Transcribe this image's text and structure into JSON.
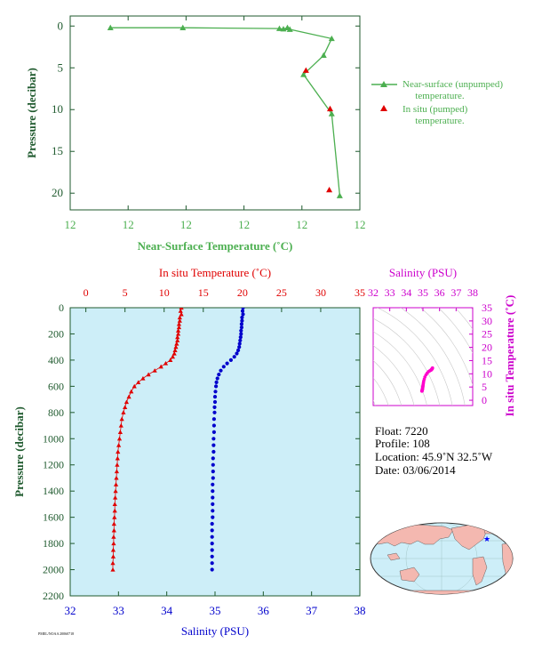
{
  "colors": {
    "axis_green": "#1f5a2e",
    "near_surface_green": "#4caf50",
    "in_situ_red": "#e00000",
    "salinity_blue": "#0000cc",
    "salinity_magenta": "#cc00cc",
    "panel_fill": "#cdeef8",
    "land_pink": "#f4b8b0",
    "ocean": "#cdeef8"
  },
  "chart_data": [
    {
      "type": "line",
      "xlabel": "Near-Surface Temperature (˚C)",
      "ylabel": "Pressure (decibar)",
      "x_tick_labels": [
        "12",
        "12",
        "12",
        "12",
        "12",
        "12"
      ],
      "y_ticks": [
        0,
        5,
        10,
        15,
        20
      ],
      "y_reversed": true,
      "legend_placement": "right",
      "series": [
        {
          "name": "Near-surface (unpumped) temperature.",
          "line_name": "Near-surface (unpumped)",
          "line2": "temperature.",
          "marker": "triangle",
          "color": "#4caf50",
          "points": [
            {
              "t": 11.67,
              "p": 0.2
            },
            {
              "t": 11.76,
              "p": 0.2
            },
            {
              "t": 11.88,
              "p": 0.3
            },
            {
              "t": 11.885,
              "p": 0.35
            },
            {
              "t": 11.89,
              "p": 0.2
            },
            {
              "t": 11.893,
              "p": 0.4
            },
            {
              "t": 11.945,
              "p": 1.5
            },
            {
              "t": 11.935,
              "p": 3.5
            },
            {
              "t": 11.91,
              "p": 5.8
            },
            {
              "t": 11.945,
              "p": 10.5
            },
            {
              "t": 11.955,
              "p": 20.3
            }
          ]
        },
        {
          "name": "In situ (pumped) temperature.",
          "line_name": "In situ (pumped)",
          "line2": "temperature.",
          "marker": "triangle",
          "color": "#e00000",
          "points": [
            {
              "t": 11.913,
              "p": 5.3
            },
            {
              "t": 11.943,
              "p": 9.9
            },
            {
              "t": 11.942,
              "p": 19.6
            }
          ]
        }
      ]
    },
    {
      "type": "scatter",
      "top_axis_label": "In situ Temperature (˚C)",
      "bottom_axis_label": "Salinity (PSU)",
      "ylabel": "Pressure (decibar)",
      "temperature_ticks": [
        0,
        5,
        10,
        15,
        20,
        25,
        30,
        35
      ],
      "salinity_ticks": [
        32,
        33,
        34,
        35,
        36,
        37,
        38
      ],
      "pressure_ticks": [
        0,
        200,
        400,
        600,
        800,
        1000,
        1200,
        1400,
        1600,
        1800,
        2000,
        2200
      ],
      "temperature_range": [
        -2,
        35
      ],
      "salinity_range": [
        32,
        38
      ],
      "pressure_range": [
        0,
        2200
      ],
      "series": [
        {
          "name": "In situ Temperature",
          "marker": "triangle",
          "color": "#e00000",
          "points": [
            {
              "p": 0,
              "v": 12.2
            },
            {
              "p": 25,
              "v": 12.1
            },
            {
              "p": 50,
              "v": 12.2
            },
            {
              "p": 75,
              "v": 12.0
            },
            {
              "p": 100,
              "v": 12.0
            },
            {
              "p": 125,
              "v": 11.9
            },
            {
              "p": 150,
              "v": 11.9
            },
            {
              "p": 175,
              "v": 11.8
            },
            {
              "p": 200,
              "v": 11.8
            },
            {
              "p": 225,
              "v": 11.7
            },
            {
              "p": 250,
              "v": 11.7
            },
            {
              "p": 275,
              "v": 11.6
            },
            {
              "p": 300,
              "v": 11.5
            },
            {
              "p": 325,
              "v": 11.4
            },
            {
              "p": 350,
              "v": 11.3
            },
            {
              "p": 375,
              "v": 11.1
            },
            {
              "p": 400,
              "v": 10.8
            },
            {
              "p": 425,
              "v": 10.2
            },
            {
              "p": 450,
              "v": 9.6
            },
            {
              "p": 480,
              "v": 8.8
            },
            {
              "p": 510,
              "v": 8.0
            },
            {
              "p": 540,
              "v": 7.3
            },
            {
              "p": 570,
              "v": 6.7
            },
            {
              "p": 600,
              "v": 6.2
            },
            {
              "p": 640,
              "v": 5.8
            },
            {
              "p": 680,
              "v": 5.5
            },
            {
              "p": 720,
              "v": 5.2
            },
            {
              "p": 760,
              "v": 5.0
            },
            {
              "p": 800,
              "v": 4.8
            },
            {
              "p": 850,
              "v": 4.6
            },
            {
              "p": 900,
              "v": 4.5
            },
            {
              "p": 950,
              "v": 4.4
            },
            {
              "p": 1000,
              "v": 4.3
            },
            {
              "p": 1050,
              "v": 4.2
            },
            {
              "p": 1100,
              "v": 4.1
            },
            {
              "p": 1150,
              "v": 4.05
            },
            {
              "p": 1200,
              "v": 4.0
            },
            {
              "p": 1250,
              "v": 3.95
            },
            {
              "p": 1300,
              "v": 3.9
            },
            {
              "p": 1350,
              "v": 3.85
            },
            {
              "p": 1400,
              "v": 3.8
            },
            {
              "p": 1450,
              "v": 3.75
            },
            {
              "p": 1500,
              "v": 3.7
            },
            {
              "p": 1550,
              "v": 3.7
            },
            {
              "p": 1600,
              "v": 3.65
            },
            {
              "p": 1650,
              "v": 3.6
            },
            {
              "p": 1700,
              "v": 3.6
            },
            {
              "p": 1750,
              "v": 3.55
            },
            {
              "p": 1800,
              "v": 3.55
            },
            {
              "p": 1850,
              "v": 3.5
            },
            {
              "p": 1900,
              "v": 3.5
            },
            {
              "p": 1950,
              "v": 3.45
            },
            {
              "p": 2000,
              "v": 3.45
            }
          ]
        },
        {
          "name": "Salinity",
          "marker": "circle",
          "color": "#0000cc",
          "points": [
            {
              "p": 0,
              "v": 35.58
            },
            {
              "p": 25,
              "v": 35.57
            },
            {
              "p": 50,
              "v": 35.58
            },
            {
              "p": 75,
              "v": 35.56
            },
            {
              "p": 100,
              "v": 35.56
            },
            {
              "p": 125,
              "v": 35.55
            },
            {
              "p": 150,
              "v": 35.55
            },
            {
              "p": 175,
              "v": 35.54
            },
            {
              "p": 200,
              "v": 35.54
            },
            {
              "p": 225,
              "v": 35.53
            },
            {
              "p": 250,
              "v": 35.52
            },
            {
              "p": 275,
              "v": 35.51
            },
            {
              "p": 300,
              "v": 35.5
            },
            {
              "p": 325,
              "v": 35.48
            },
            {
              "p": 350,
              "v": 35.45
            },
            {
              "p": 375,
              "v": 35.4
            },
            {
              "p": 400,
              "v": 35.33
            },
            {
              "p": 425,
              "v": 35.25
            },
            {
              "p": 450,
              "v": 35.18
            },
            {
              "p": 480,
              "v": 35.12
            },
            {
              "p": 510,
              "v": 35.08
            },
            {
              "p": 540,
              "v": 35.05
            },
            {
              "p": 570,
              "v": 35.03
            },
            {
              "p": 600,
              "v": 35.02
            },
            {
              "p": 640,
              "v": 35.01
            },
            {
              "p": 680,
              "v": 35.0
            },
            {
              "p": 720,
              "v": 35.0
            },
            {
              "p": 760,
              "v": 34.99
            },
            {
              "p": 800,
              "v": 34.99
            },
            {
              "p": 850,
              "v": 34.98
            },
            {
              "p": 900,
              "v": 34.98
            },
            {
              "p": 950,
              "v": 34.98
            },
            {
              "p": 1000,
              "v": 34.97
            },
            {
              "p": 1050,
              "v": 34.97
            },
            {
              "p": 1100,
              "v": 34.97
            },
            {
              "p": 1150,
              "v": 34.96
            },
            {
              "p": 1200,
              "v": 34.96
            },
            {
              "p": 1250,
              "v": 34.96
            },
            {
              "p": 1300,
              "v": 34.96
            },
            {
              "p": 1350,
              "v": 34.95
            },
            {
              "p": 1400,
              "v": 34.95
            },
            {
              "p": 1450,
              "v": 34.95
            },
            {
              "p": 1500,
              "v": 34.95
            },
            {
              "p": 1550,
              "v": 34.95
            },
            {
              "p": 1600,
              "v": 34.95
            },
            {
              "p": 1650,
              "v": 34.94
            },
            {
              "p": 1700,
              "v": 34.94
            },
            {
              "p": 1750,
              "v": 34.94
            },
            {
              "p": 1800,
              "v": 34.94
            },
            {
              "p": 1850,
              "v": 34.94
            },
            {
              "p": 1900,
              "v": 34.94
            },
            {
              "p": 1950,
              "v": 34.94
            },
            {
              "p": 2000,
              "v": 34.94
            }
          ]
        }
      ]
    },
    {
      "type": "scatter",
      "xlabel": "Salinity (PSU)",
      "ylabel": "In situ Temperature (˚C)",
      "x_ticks": [
        32,
        33,
        34,
        35,
        36,
        37,
        38
      ],
      "y_ticks": [
        0,
        5,
        10,
        15,
        20,
        25,
        30,
        35
      ],
      "xlim": [
        32,
        38
      ],
      "ylim": [
        -2,
        35
      ],
      "color": "#ff00cc",
      "marker": "circle"
    }
  ],
  "float_info": {
    "float_line": "Float:  7220",
    "profile_line": "Profile:  108",
    "location_line": "Location:  45.9˚N  32.5˚W",
    "date_line": "Date:  03/06/2014"
  },
  "map": {
    "marker_color": "#0000ff",
    "marker_symbol": "★"
  },
  "footer": {
    "small_code": "PMEL/NOAA 20060718"
  }
}
